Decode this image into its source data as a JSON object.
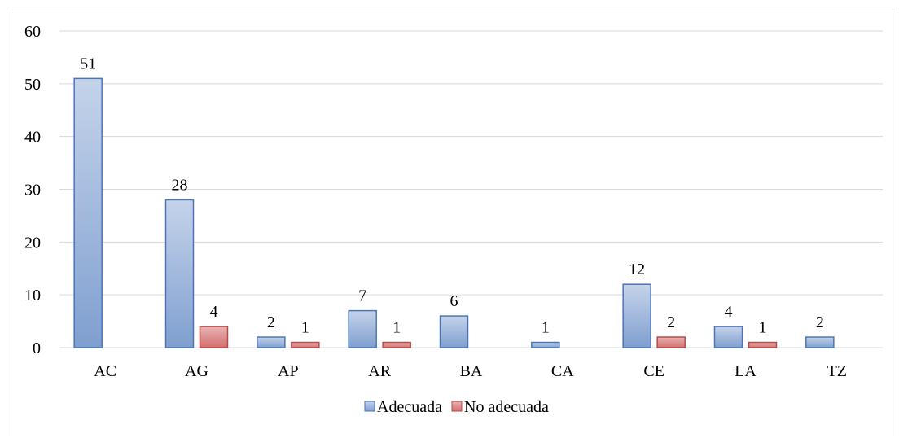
{
  "chart_data": {
    "type": "bar",
    "title": "",
    "xlabel": "",
    "ylabel": "",
    "categories": [
      "AC",
      "AG",
      "AP",
      "AR",
      "BA",
      "CA",
      "CE",
      "LA",
      "TZ"
    ],
    "series": [
      {
        "name": "Adecuada",
        "values": [
          51,
          28,
          2,
          7,
          6,
          1,
          12,
          4,
          2
        ],
        "labels": [
          "51",
          "28",
          "2",
          "7",
          "6",
          "1",
          "12",
          "4",
          "2"
        ],
        "color_top": "#c5d3ea",
        "color_bottom": "#7f9fd0",
        "stroke": "#4a76b7"
      },
      {
        "name": "No adecuada",
        "values": [
          null,
          4,
          1,
          1,
          null,
          null,
          2,
          1,
          null
        ],
        "labels": [
          "",
          "4",
          "1",
          "1",
          "",
          "",
          "2",
          "1",
          ""
        ],
        "color_top": "#e8b3b3",
        "color_bottom": "#d56f6f",
        "stroke": "#b94a48"
      }
    ],
    "y_ticks": [
      "0",
      "10",
      "20",
      "30",
      "40",
      "50",
      "60"
    ],
    "ylim": [
      0,
      60
    ],
    "grid": true,
    "legend_position": "bottom"
  }
}
